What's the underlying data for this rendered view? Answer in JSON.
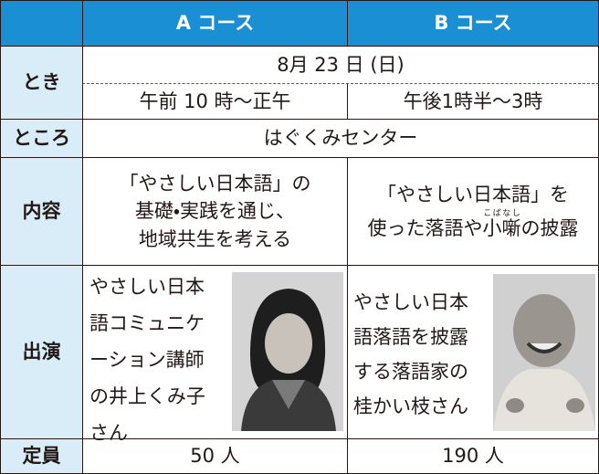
{
  "header": {
    "columns": [
      "A コース",
      "B コース"
    ]
  },
  "rows": {
    "toki": {
      "label": "とき",
      "date": "8月 23 日 (日)",
      "a": "午前 10 時〜正午",
      "b": "午後1時半〜3時"
    },
    "tokoro": {
      "label": "ところ",
      "place": "はぐくみセンター"
    },
    "naiyou": {
      "label": "内容",
      "a": [
        "「やさしい日本語」の",
        "基礎・実践を通じ、",
        "地域共生を考える"
      ],
      "b": {
        "line1": "「やさしい日本語」を",
        "before": "使った落語や",
        "ruby_base": "小噺",
        "ruby": "こばなし",
        "after": "の披露"
      }
    },
    "shutsuen": {
      "label": "出演",
      "a": [
        "やさしい日本",
        "語コミュニケ",
        "ーション講師",
        "の井上くみ子",
        "さん"
      ],
      "b": [
        "やさしい日本",
        "語落語を披露",
        "する落語家の",
        "桂かい枝さん"
      ]
    },
    "teiin": {
      "label": "定員",
      "a": "50 人",
      "b": "190 人"
    }
  }
}
